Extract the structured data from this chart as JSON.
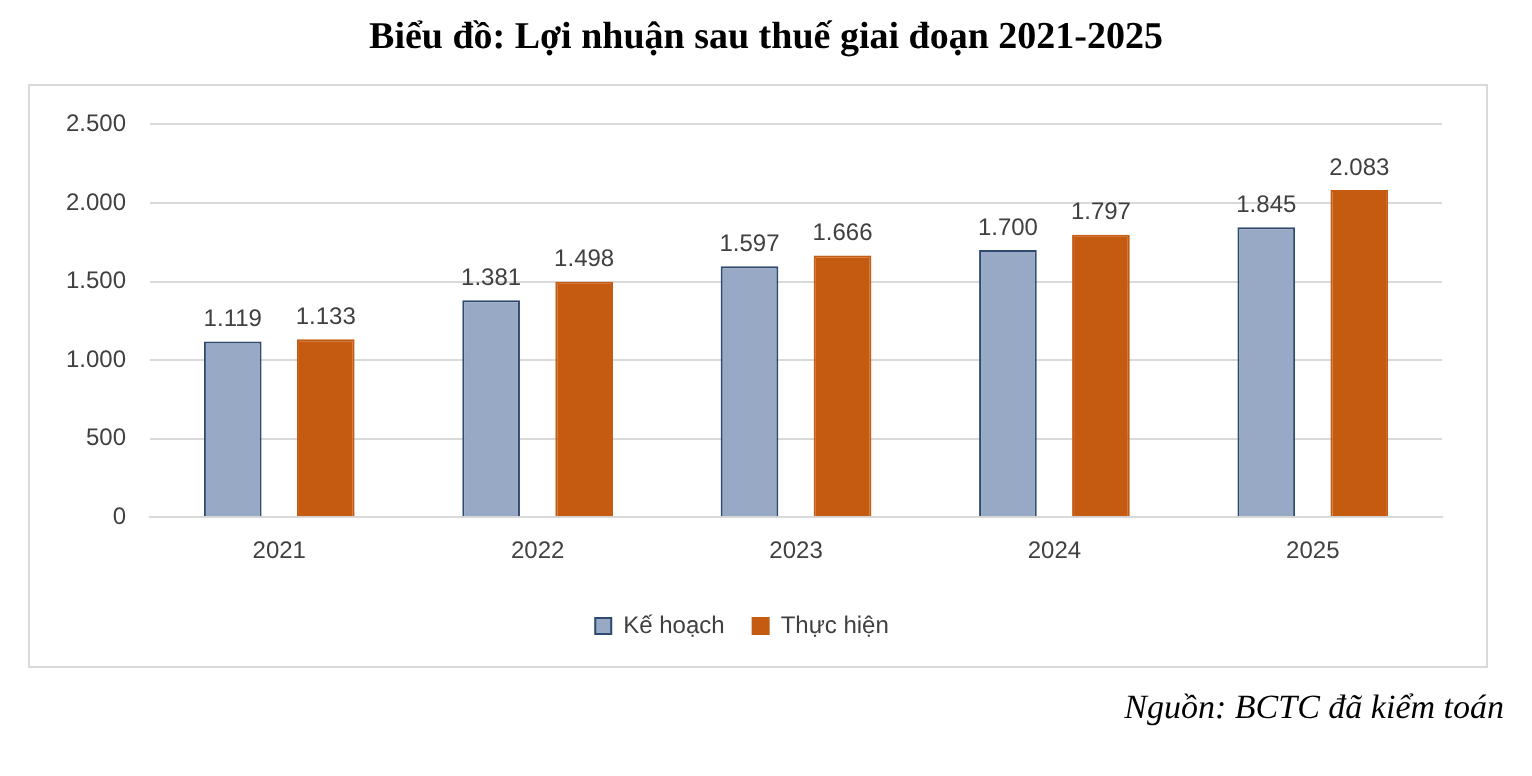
{
  "chart_data": {
    "type": "bar",
    "title": "Biểu đồ: Lợi nhuận sau thuế giai đoạn 2021-2025",
    "categories": [
      "2021",
      "2022",
      "2023",
      "2024",
      "2025"
    ],
    "series": [
      {
        "name": "Kế hoạch",
        "color": "#97a9c4",
        "values": [
          1119,
          1381,
          1597,
          1700,
          1845
        ],
        "value_labels": [
          "1.119",
          "1.381",
          "1.597",
          "1.700",
          "1.845"
        ]
      },
      {
        "name": "Thực hiện",
        "color": "#c55a11",
        "values": [
          1133,
          1498,
          1666,
          1797,
          2083
        ],
        "value_labels": [
          "1.133",
          "1.498",
          "1.666",
          "1.797",
          "2.083"
        ]
      }
    ],
    "ylim": [
      0,
      2500
    ],
    "yticks": [
      {
        "value": 0,
        "label": "0"
      },
      {
        "value": 500,
        "label": "500"
      },
      {
        "value": 1000,
        "label": "1.000"
      },
      {
        "value": 1500,
        "label": "1.500"
      },
      {
        "value": 2000,
        "label": "2.000"
      },
      {
        "value": 2500,
        "label": "2.500"
      }
    ],
    "grid": "y",
    "legend": "bottom",
    "annotations": [
      "Nguồn: BCTC đã kiểm toán"
    ]
  }
}
